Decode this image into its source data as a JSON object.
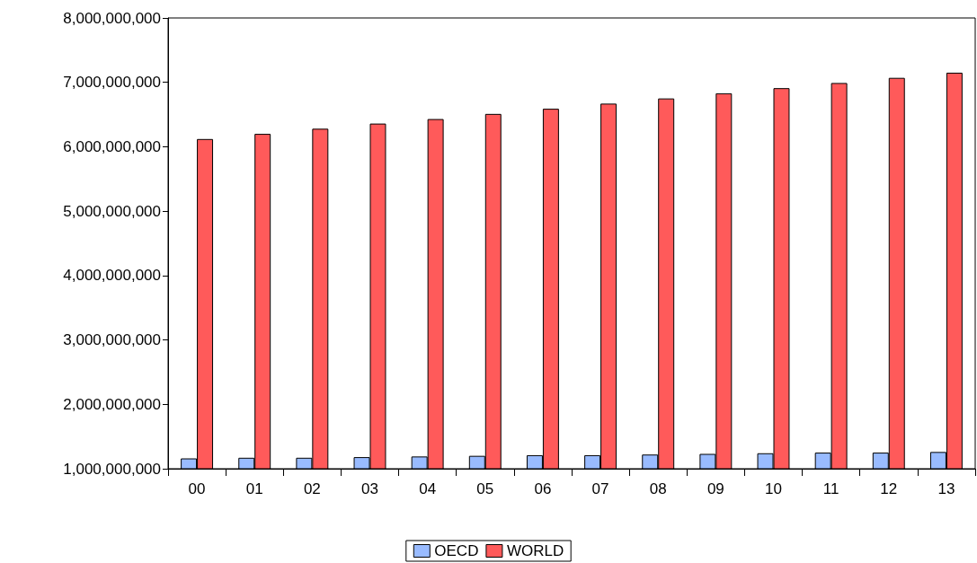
{
  "chart_data": {
    "type": "bar",
    "categories": [
      "00",
      "01",
      "02",
      "03",
      "04",
      "05",
      "06",
      "07",
      "08",
      "09",
      "10",
      "11",
      "12",
      "13"
    ],
    "series": [
      {
        "name": "OECD",
        "color": "#99bbff",
        "values": [
          1160000000,
          1170000000,
          1170000000,
          1180000000,
          1190000000,
          1200000000,
          1210000000,
          1210000000,
          1220000000,
          1230000000,
          1240000000,
          1250000000,
          1250000000,
          1260000000
        ]
      },
      {
        "name": "WORLD",
        "color": "#ff5a5a",
        "values": [
          6120000000,
          6200000000,
          6280000000,
          6360000000,
          6430000000,
          6510000000,
          6590000000,
          6670000000,
          6750000000,
          6830000000,
          6910000000,
          6990000000,
          7070000000,
          7150000000
        ]
      }
    ],
    "ylim": [
      1000000000,
      8000000000
    ],
    "yticks": [
      {
        "value": 1000000000,
        "label": "1,000,000,000"
      },
      {
        "value": 2000000000,
        "label": "2,000,000,000"
      },
      {
        "value": 3000000000,
        "label": "3,000,000,000"
      },
      {
        "value": 4000000000,
        "label": "4,000,000,000"
      },
      {
        "value": 5000000000,
        "label": "5,000,000,000"
      },
      {
        "value": 6000000000,
        "label": "6,000,000,000"
      },
      {
        "value": 7000000000,
        "label": "7,000,000,000"
      },
      {
        "value": 8000000000,
        "label": "8,000,000,000"
      }
    ],
    "grid": false,
    "legend": "bottom"
  }
}
